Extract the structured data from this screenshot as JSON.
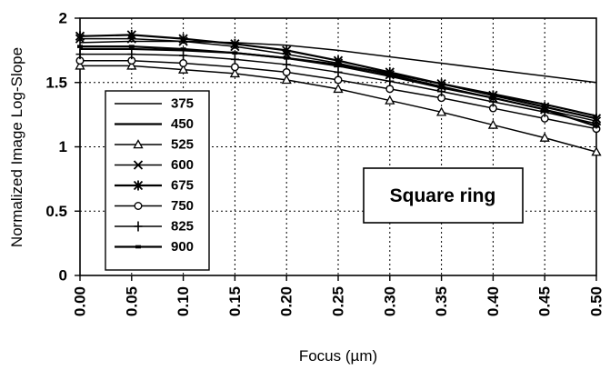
{
  "chart_data": {
    "type": "line",
    "title": "",
    "xlabel": "Focus (µm)",
    "ylabel": "Normalized Image Log-Slope",
    "xlim": [
      0,
      0.5
    ],
    "ylim": [
      0,
      2
    ],
    "x": [
      0.0,
      0.05,
      0.1,
      0.15,
      0.2,
      0.25,
      0.3,
      0.35,
      0.4,
      0.45,
      0.5
    ],
    "x_tick_labels": [
      "0.00",
      "0.05",
      "0.10",
      "0.15",
      "0.20",
      "0.25",
      "0.30",
      "0.35",
      "0.40",
      "0.45",
      "0.50"
    ],
    "y_ticks": [
      0,
      0.5,
      1,
      1.5,
      2
    ],
    "y_tick_labels": [
      "0",
      "0.5",
      "1",
      "1.5",
      "2"
    ],
    "grid": "dotted",
    "legend_placement": "left",
    "annotation": "Square ring",
    "series": [
      {
        "name": "375",
        "marker": "none",
        "values": [
          1.81,
          1.82,
          1.82,
          1.81,
          1.79,
          1.75,
          1.7,
          1.65,
          1.6,
          1.55,
          1.5
        ]
      },
      {
        "name": "450",
        "marker": "none",
        "values": [
          1.76,
          1.76,
          1.75,
          1.73,
          1.69,
          1.64,
          1.57,
          1.49,
          1.41,
          1.33,
          1.24
        ]
      },
      {
        "name": "525",
        "marker": "triangle",
        "values": [
          1.63,
          1.63,
          1.6,
          1.57,
          1.52,
          1.45,
          1.36,
          1.27,
          1.17,
          1.07,
          0.96
        ]
      },
      {
        "name": "600",
        "marker": "x",
        "values": [
          1.84,
          1.84,
          1.82,
          1.78,
          1.72,
          1.65,
          1.56,
          1.47,
          1.38,
          1.29,
          1.2
        ]
      },
      {
        "name": "675",
        "marker": "asterisk",
        "values": [
          1.86,
          1.87,
          1.84,
          1.8,
          1.75,
          1.67,
          1.58,
          1.49,
          1.4,
          1.31,
          1.22
        ]
      },
      {
        "name": "750",
        "marker": "circle",
        "values": [
          1.67,
          1.67,
          1.65,
          1.62,
          1.58,
          1.52,
          1.45,
          1.38,
          1.3,
          1.22,
          1.14
        ]
      },
      {
        "name": "825",
        "marker": "plus",
        "values": [
          1.72,
          1.72,
          1.71,
          1.68,
          1.64,
          1.58,
          1.51,
          1.43,
          1.35,
          1.27,
          1.18
        ]
      },
      {
        "name": "900",
        "marker": "dash",
        "values": [
          1.78,
          1.78,
          1.76,
          1.73,
          1.69,
          1.63,
          1.55,
          1.46,
          1.38,
          1.29,
          1.16
        ]
      }
    ]
  }
}
